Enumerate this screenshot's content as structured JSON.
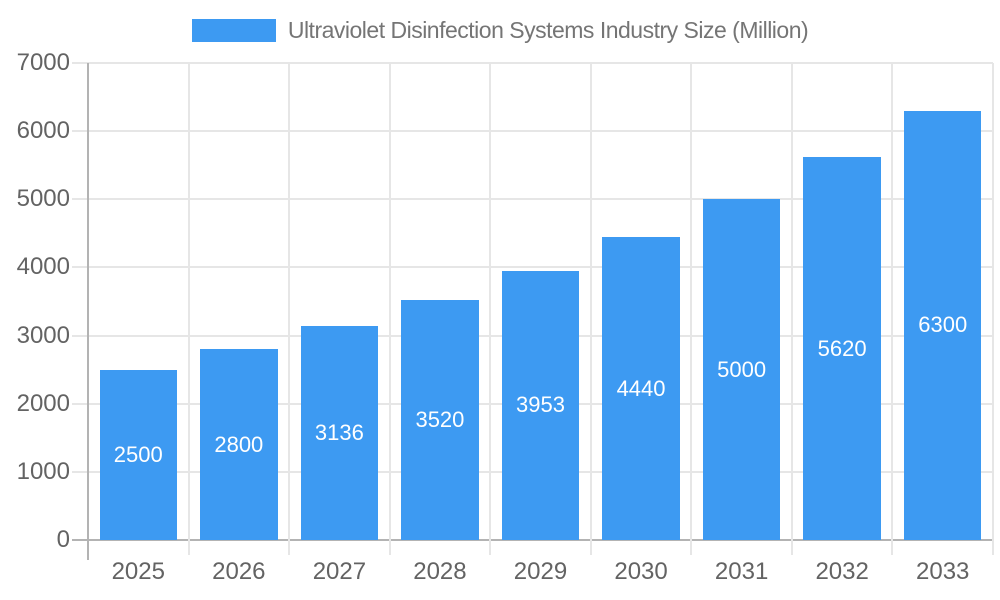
{
  "chart_data": {
    "type": "bar",
    "title": "Ultraviolet Disinfection Systems Industry Size (Million)",
    "categories": [
      "2025",
      "2026",
      "2027",
      "2028",
      "2029",
      "2030",
      "2031",
      "2032",
      "2033"
    ],
    "values": [
      2500,
      2800,
      3136,
      3520,
      3953,
      4440,
      5000,
      5620,
      6300
    ],
    "xlabel": "",
    "ylabel": "",
    "ylim": [
      0,
      7000
    ],
    "ytick_step": 1000,
    "ytick_labels": [
      "0",
      "1000",
      "2000",
      "3000",
      "4000",
      "5000",
      "6000",
      "7000"
    ],
    "grid": true,
    "legend_position": "top-center",
    "value_labels_inside_bars": true,
    "colors": {
      "bar": "#3d9af2",
      "value_label": "#ffffff",
      "title_text": "#757575",
      "tick_label_text": "#636363",
      "gridline": "#e6e6e6",
      "axis_line": "#b3b3b3",
      "background": "#ffffff"
    }
  }
}
